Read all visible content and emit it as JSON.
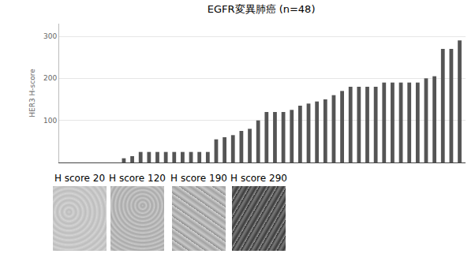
{
  "chart_data": {
    "type": "bar",
    "title": "EGFR変異肺癌 (n=48)",
    "y_label": "HER3 H-score",
    "categories": [
      null,
      null,
      null,
      null,
      null,
      null,
      null,
      null,
      null,
      null,
      null,
      null,
      null,
      null,
      null,
      null,
      null,
      null,
      null,
      null,
      null,
      null,
      null,
      null,
      null,
      null,
      null,
      null,
      null,
      null,
      null,
      null,
      null,
      null,
      null,
      null,
      null,
      null,
      null,
      null,
      null,
      null,
      null,
      null,
      null,
      null,
      null,
      null
    ],
    "values": [
      0,
      0,
      0,
      0,
      0,
      0,
      0,
      10,
      15,
      25,
      25,
      25,
      25,
      25,
      25,
      25,
      25,
      25,
      55,
      60,
      65,
      75,
      80,
      100,
      120,
      120,
      120,
      125,
      135,
      140,
      145,
      150,
      160,
      170,
      180,
      180,
      180,
      180,
      190,
      190,
      190,
      190,
      190,
      200,
      205,
      270,
      270,
      290
    ],
    "color": "#555555",
    "ylim": [
      0,
      330
    ],
    "yticks": [
      100,
      200,
      300
    ],
    "grid": true,
    "tick_labels": "y"
  },
  "panels": [
    "H score 20",
    "H score 120",
    "H score 190",
    "H score 290"
  ]
}
